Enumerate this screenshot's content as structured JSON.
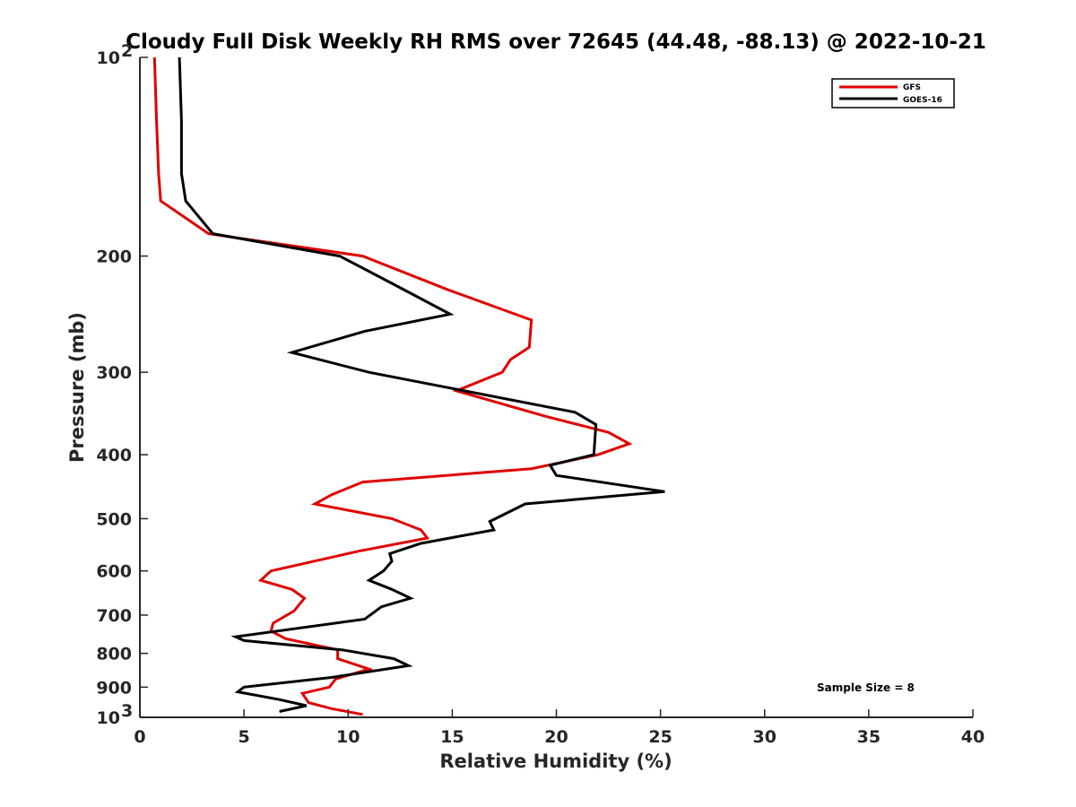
{
  "chart_data": {
    "type": "line",
    "title": "Cloudy Full Disk Weekly RH RMS over 72645 (44.48, -88.13) @ 2022-10-21",
    "xlabel": "Relative Humidity (%)",
    "ylabel": "Pressure (mb)",
    "xlim": [
      0,
      40
    ],
    "ylim": [
      100,
      1000
    ],
    "yscale": "log",
    "y_reversed": true,
    "xticks": [
      0,
      5,
      10,
      15,
      20,
      25,
      30,
      35,
      40
    ],
    "yticks": [
      {
        "value": 100,
        "base": "10",
        "exp": "2"
      },
      {
        "value": 200,
        "label": "200"
      },
      {
        "value": 300,
        "label": "300"
      },
      {
        "value": 400,
        "label": "400"
      },
      {
        "value": 500,
        "label": "500"
      },
      {
        "value": 600,
        "label": "600"
      },
      {
        "value": 700,
        "label": "700"
      },
      {
        "value": 800,
        "label": "800"
      },
      {
        "value": 900,
        "label": "900"
      },
      {
        "value": 1000,
        "base": "10",
        "exp": "3"
      }
    ],
    "grid": false,
    "legend_position": "top-right",
    "annotation": "Sample Size = 8",
    "series": [
      {
        "name": "GFS",
        "color": "#e00000",
        "points": [
          [
            0.7,
            100
          ],
          [
            0.8,
            125
          ],
          [
            0.9,
            150
          ],
          [
            1.0,
            165
          ],
          [
            3.3,
            185
          ],
          [
            10.7,
            200
          ],
          [
            14.8,
            225
          ],
          [
            18.8,
            250
          ],
          [
            18.7,
            275
          ],
          [
            17.8,
            287
          ],
          [
            17.4,
            300
          ],
          [
            15.2,
            320
          ],
          [
            19.5,
            350
          ],
          [
            22.5,
            370
          ],
          [
            23.5,
            385
          ],
          [
            22.0,
            400
          ],
          [
            18.8,
            420
          ],
          [
            10.7,
            440
          ],
          [
            9.2,
            460
          ],
          [
            8.4,
            475
          ],
          [
            12.1,
            500
          ],
          [
            13.5,
            520
          ],
          [
            13.8,
            535
          ],
          [
            10.5,
            560
          ],
          [
            6.3,
            600
          ],
          [
            5.8,
            620
          ],
          [
            7.3,
            640
          ],
          [
            7.9,
            660
          ],
          [
            7.4,
            690
          ],
          [
            6.4,
            720
          ],
          [
            6.3,
            740
          ],
          [
            7.0,
            760
          ],
          [
            9.5,
            790
          ],
          [
            9.5,
            815
          ],
          [
            11.0,
            845
          ],
          [
            9.4,
            875
          ],
          [
            9.1,
            900
          ],
          [
            7.8,
            920
          ],
          [
            8.1,
            950
          ],
          [
            9.2,
            970
          ],
          [
            10.7,
            990
          ]
        ]
      },
      {
        "name": "GOES-16",
        "color": "#000000",
        "points": [
          [
            1.9,
            100
          ],
          [
            2.0,
            125
          ],
          [
            2.0,
            150
          ],
          [
            2.2,
            165
          ],
          [
            3.5,
            185
          ],
          [
            9.6,
            200
          ],
          [
            12.1,
            220
          ],
          [
            14.9,
            245
          ],
          [
            10.8,
            260
          ],
          [
            7.3,
            280
          ],
          [
            11.0,
            300
          ],
          [
            20.9,
            345
          ],
          [
            21.9,
            360
          ],
          [
            21.8,
            400
          ],
          [
            19.7,
            415
          ],
          [
            20.0,
            430
          ],
          [
            25.2,
            455
          ],
          [
            18.5,
            475
          ],
          [
            16.8,
            505
          ],
          [
            17.0,
            520
          ],
          [
            13.5,
            545
          ],
          [
            12.0,
            565
          ],
          [
            12.1,
            580
          ],
          [
            11.7,
            600
          ],
          [
            11.0,
            620
          ],
          [
            12.1,
            640
          ],
          [
            13.0,
            660
          ],
          [
            11.6,
            680
          ],
          [
            10.8,
            710
          ],
          [
            4.6,
            755
          ],
          [
            5.0,
            765
          ],
          [
            9.7,
            790
          ],
          [
            12.2,
            815
          ],
          [
            12.9,
            835
          ],
          [
            9.2,
            870
          ],
          [
            5.0,
            900
          ],
          [
            4.7,
            915
          ],
          [
            6.7,
            940
          ],
          [
            8.0,
            960
          ],
          [
            6.7,
            980
          ]
        ]
      }
    ]
  }
}
